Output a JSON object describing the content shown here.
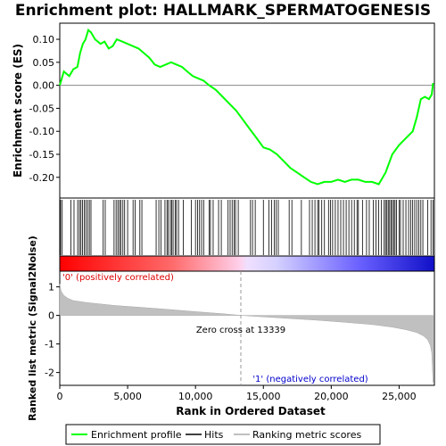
{
  "chart_data": {
    "type": "line",
    "title": "Enrichment plot: HALLMARK_SPERMATOGENESIS",
    "top_panel": {
      "ylabel": "Enrichment score (ES)",
      "ylim": [
        -0.245,
        0.135
      ],
      "yticks": [
        0.1,
        0.05,
        0.0,
        -0.05,
        -0.1,
        -0.15,
        -0.2
      ],
      "ytick_labels": [
        "0.10",
        "0.05",
        "0.00",
        "-0.05",
        "-0.10",
        "-0.15",
        "-0.20"
      ],
      "series": [
        {
          "name": "Enrichment profile",
          "color": "#00ff00",
          "x": [
            0,
            300,
            700,
            1000,
            1300,
            1500,
            1700,
            1900,
            2100,
            2300,
            2600,
            3000,
            3300,
            3600,
            3900,
            4200,
            4600,
            5000,
            5400,
            5800,
            6200,
            6600,
            7000,
            7400,
            7800,
            8200,
            8600,
            9000,
            9400,
            9800,
            10200,
            10600,
            11000,
            11500,
            12000,
            12500,
            13000,
            13500,
            14000,
            14500,
            15000,
            15500,
            16000,
            16500,
            17000,
            17500,
            18000,
            18500,
            19000,
            19500,
            20000,
            20500,
            21000,
            21500,
            22000,
            22500,
            23000,
            23500,
            24000,
            24500,
            25000,
            25500,
            26000,
            26300,
            26600,
            26900,
            27200,
            27400,
            27500
          ],
          "y": [
            0.0,
            0.03,
            0.02,
            0.035,
            0.04,
            0.07,
            0.09,
            0.1,
            0.12,
            0.115,
            0.1,
            0.09,
            0.095,
            0.08,
            0.085,
            0.1,
            0.095,
            0.09,
            0.085,
            0.08,
            0.07,
            0.06,
            0.045,
            0.04,
            0.045,
            0.05,
            0.045,
            0.04,
            0.03,
            0.02,
            0.015,
            0.01,
            0.0,
            -0.01,
            -0.025,
            -0.04,
            -0.055,
            -0.075,
            -0.095,
            -0.115,
            -0.135,
            -0.14,
            -0.15,
            -0.165,
            -0.18,
            -0.19,
            -0.2,
            -0.21,
            -0.215,
            -0.21,
            -0.21,
            -0.205,
            -0.21,
            -0.205,
            -0.205,
            -0.21,
            -0.21,
            -0.215,
            -0.19,
            -0.15,
            -0.13,
            -0.115,
            -0.1,
            -0.07,
            -0.03,
            -0.025,
            -0.03,
            -0.02,
            0.005
          ]
        }
      ]
    },
    "hits": {
      "name": "Hits",
      "color": "#000000",
      "positions": [
        60,
        180,
        820,
        1050,
        1320,
        1450,
        1560,
        1680,
        1800,
        1920,
        2050,
        2180,
        2300,
        3200,
        3350,
        4000,
        4150,
        4280,
        4400,
        4500,
        4650,
        4780,
        5000,
        5400,
        5550,
        5900,
        6050,
        7100,
        7300,
        7450,
        7750,
        7900,
        8000,
        8150,
        8250,
        8350,
        8500,
        8600,
        8750,
        9100,
        9700,
        10000,
        10150,
        10300,
        10450,
        10600,
        11000,
        11100,
        11300,
        11700,
        11900,
        12400,
        12550,
        12700,
        12850,
        12950,
        13150,
        14050,
        14200,
        14400,
        15000,
        15400,
        15600,
        15800,
        15950,
        16100,
        16900,
        17100,
        17800,
        18400,
        18600,
        18800,
        19000,
        19100,
        19300,
        19500,
        19800,
        19950,
        20100,
        20300,
        20500,
        20700,
        20900,
        21100,
        21300,
        21500,
        21700,
        21900,
        22000,
        22300,
        22600,
        22800,
        23100,
        23300,
        23500,
        23700,
        23900,
        24000,
        24100,
        24200,
        24300,
        24400,
        24500,
        24600,
        24700,
        24800,
        25000,
        25100,
        25300,
        25500,
        25700,
        25850,
        26000,
        26150,
        26300,
        26450,
        26600,
        26750,
        27100,
        27350,
        27500
      ]
    },
    "color_bar": {
      "from_color": "#ff0000",
      "to_color": "#0000ff",
      "label_positive": "'0' (positively correlated)",
      "label_negative": "'1' (negatively correlated)"
    },
    "bottom_panel": {
      "name": "Ranking metric scores",
      "color": "#c0c0c0",
      "xlabel": "Rank in Ordered Dataset",
      "ylabel": "Ranked list metric (Signal2Noise)",
      "ylim": [
        -2.45,
        1.55
      ],
      "yticks": [
        1,
        0,
        -1,
        -2
      ],
      "ytick_labels": [
        "1",
        "0",
        "-1",
        "-2"
      ],
      "x": [
        0,
        100,
        300,
        600,
        1000,
        2000,
        4000,
        6000,
        8000,
        10000,
        12000,
        13339,
        15000,
        17000,
        19000,
        21000,
        23000,
        24500,
        25500,
        26300,
        26800,
        27100,
        27300,
        27400,
        27450,
        27500
      ],
      "values": [
        1.1,
        0.85,
        0.7,
        0.6,
        0.52,
        0.45,
        0.35,
        0.28,
        0.21,
        0.13,
        0.06,
        0.0,
        -0.05,
        -0.11,
        -0.17,
        -0.24,
        -0.32,
        -0.41,
        -0.5,
        -0.6,
        -0.72,
        -0.85,
        -1.05,
        -1.3,
        -1.8,
        -2.35
      ],
      "zero_cross_rank": 13339,
      "zero_cross_label": "Zero cross at 13339"
    },
    "x_axis": {
      "xlim": [
        0,
        27600
      ],
      "xticks": [
        0,
        5000,
        10000,
        15000,
        20000,
        25000
      ],
      "xtick_labels": [
        "0",
        "5,000",
        "10,000",
        "15,000",
        "20,000",
        "25,000"
      ]
    },
    "legend": {
      "placement": "bottom",
      "entries": [
        {
          "label": "Enrichment profile",
          "color": "#00ff00"
        },
        {
          "label": "Hits",
          "color": "#000000"
        },
        {
          "label": "Ranking metric scores",
          "color": "#c0c0c0"
        }
      ]
    }
  }
}
